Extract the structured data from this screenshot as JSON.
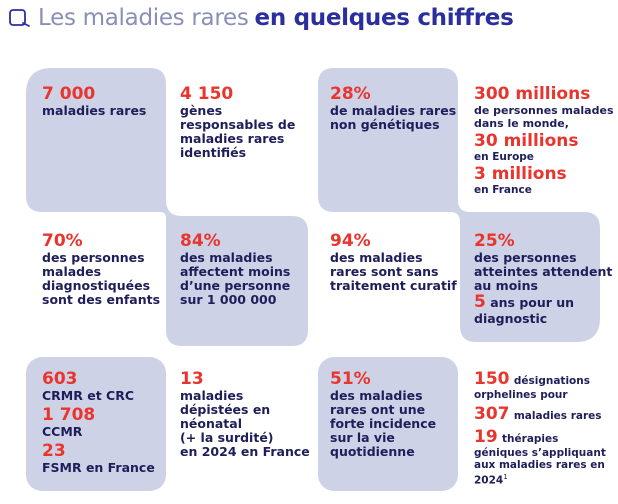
{
  "header": {
    "title_light": "Les maladies rares",
    "title_bold": "en quelques chiffres",
    "icon": "rounded-square-outline-icon"
  },
  "colors": {
    "accent_red": "#e8352e",
    "navy": "#1e1e5a",
    "panel": "#cdd2e7",
    "title_blue": "#2b2f9e"
  },
  "c1": {
    "num": "7 000",
    "text": "maladies rares"
  },
  "c2": {
    "num": "4 150",
    "l1": "gènes",
    "l2": "responsables de",
    "l3": "maladies rares",
    "l4": "identifiés"
  },
  "c3": {
    "num": "28%",
    "l1": "de maladies rares",
    "l2": "non génétiques"
  },
  "c4": {
    "n1": "300 millions",
    "t1a": "de personnes malades",
    "t1b": "dans le monde,",
    "n2": "30 millions",
    "t2": "en Europe",
    "n3": "3 millions",
    "t3": "en France"
  },
  "c5": {
    "num": "70%",
    "l1": "des personnes",
    "l2": "malades",
    "l3": "diagnostiquées",
    "l4": "sont des enfants"
  },
  "c6": {
    "num": "84%",
    "l1": "des maladies",
    "l2": "affectent moins",
    "l3": "d’une personne",
    "l4": "sur 1 000 000"
  },
  "c7": {
    "num": "94%",
    "l1": "des maladies",
    "l2": "rares sont sans",
    "l3": "traitement curatif"
  },
  "c8": {
    "num": "25%",
    "l1": "des personnes",
    "l2": "atteintes attendent",
    "l3": "au moins",
    "n2": "5",
    "t2a": "ans pour un",
    "t2b": "diagnostic"
  },
  "c9": {
    "n1": "603",
    "t1": "CRMR et CRC",
    "n2": "1 708",
    "t2": "CCMR",
    "n3": "23",
    "t3": "FSMR en France"
  },
  "c10": {
    "num": "13",
    "l1": "maladies",
    "l2": "dépistées en",
    "l3": "néonatal",
    "l4": "(+ la surdité)",
    "l5": "en 2024 en France"
  },
  "c11": {
    "num": "51%",
    "l1": "des maladies",
    "l2": "rares ont une",
    "l3": "forte incidence",
    "l4": "sur la vie",
    "l5": "quotidienne"
  },
  "c12": {
    "n1": "150",
    "t1a": "désignations",
    "t1b": "orphelines pour",
    "n2": "307",
    "t2": "maladies rares",
    "n3": "19",
    "t3a": "thérapies",
    "t3b": "géniques s’appliquant",
    "t3c": "aux maladies rares en",
    "t3d": "2024",
    "sup": "1"
  }
}
